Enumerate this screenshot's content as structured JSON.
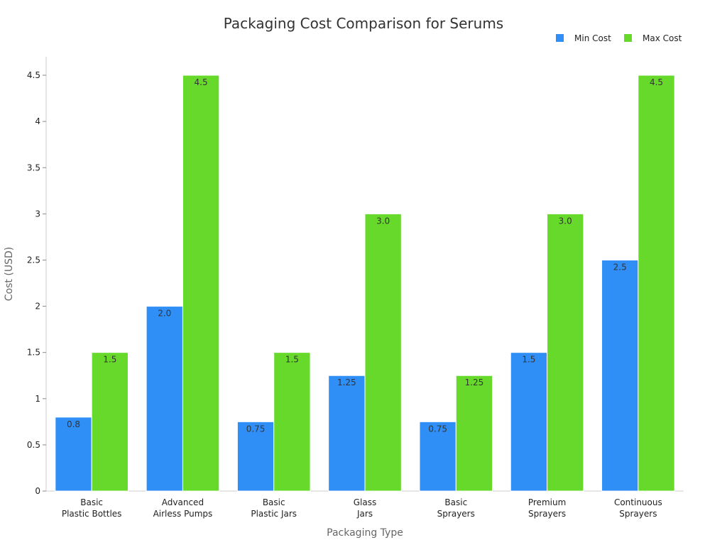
{
  "chart_data": {
    "type": "bar",
    "title": "Packaging Cost Comparison for Serums",
    "xlabel": "Packaging Type",
    "ylabel": "Cost (USD)",
    "ylim": [
      0,
      4.7
    ],
    "yticks": [
      0,
      0.5,
      1,
      1.5,
      2,
      2.5,
      3,
      3.5,
      4,
      4.5
    ],
    "ytick_labels": [
      "0",
      "0.5",
      "1",
      "1.5",
      "2",
      "2.5",
      "3",
      "3.5",
      "4",
      "4.5"
    ],
    "grid": false,
    "legend_position": "top-right",
    "categories": [
      [
        "Basic",
        "Plastic Bottles"
      ],
      [
        "Advanced",
        "Airless Pumps"
      ],
      [
        "Basic",
        "Plastic Jars"
      ],
      [
        "Glass",
        "Jars"
      ],
      [
        "Basic",
        "Sprayers"
      ],
      [
        "Premium",
        "Sprayers"
      ],
      [
        "Continuous",
        "Sprayers"
      ]
    ],
    "series": [
      {
        "name": "Min Cost",
        "color": "#2f8ff7",
        "values": [
          0.8,
          2.0,
          0.75,
          1.25,
          0.75,
          1.5,
          2.5
        ],
        "labels": [
          "0.8",
          "2.0",
          "0.75",
          "1.25",
          "0.75",
          "1.5",
          "2.5"
        ]
      },
      {
        "name": "Max Cost",
        "color": "#66d92a",
        "values": [
          1.5,
          4.5,
          1.5,
          3.0,
          1.25,
          3.0,
          4.5
        ],
        "labels": [
          "1.5",
          "4.5",
          "1.5",
          "3.0",
          "1.25",
          "3.0",
          "4.5"
        ]
      }
    ]
  }
}
